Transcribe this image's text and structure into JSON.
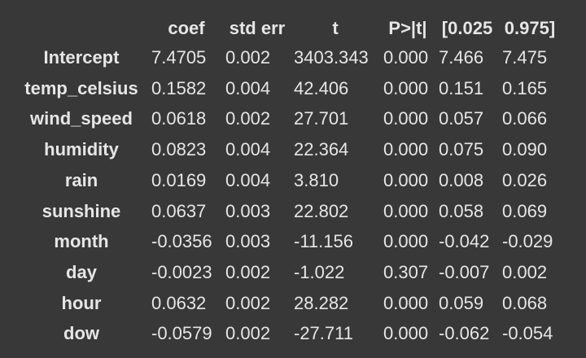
{
  "table": {
    "columns": [
      "coef",
      "std err",
      "t",
      "P>|t|",
      "[0.025",
      "0.975]"
    ],
    "rows": [
      {
        "label": "Intercept",
        "values": [
          "7.4705",
          "0.002",
          "3403.343",
          "0.000",
          "7.466",
          "7.475"
        ]
      },
      {
        "label": "temp_celsius",
        "values": [
          "0.1582",
          "0.004",
          "42.406",
          "0.000",
          "0.151",
          "0.165"
        ]
      },
      {
        "label": "wind_speed",
        "values": [
          "0.0618",
          "0.002",
          "27.701",
          "0.000",
          "0.057",
          "0.066"
        ]
      },
      {
        "label": "humidity",
        "values": [
          "0.0823",
          "0.004",
          "22.364",
          "0.000",
          "0.075",
          "0.090"
        ]
      },
      {
        "label": "rain",
        "values": [
          "0.0169",
          "0.004",
          "3.810",
          "0.000",
          "0.008",
          "0.026"
        ]
      },
      {
        "label": "sunshine",
        "values": [
          "0.0637",
          "0.003",
          "22.802",
          "0.000",
          "0.058",
          "0.069"
        ]
      },
      {
        "label": "month",
        "values": [
          "-0.0356",
          "0.003",
          "-11.156",
          "0.000",
          "-0.042",
          "-0.029"
        ]
      },
      {
        "label": "day",
        "values": [
          "-0.0023",
          "0.002",
          "-1.022",
          "0.307",
          "-0.007",
          "0.002"
        ]
      },
      {
        "label": "hour",
        "values": [
          "0.0632",
          "0.002",
          "28.282",
          "0.000",
          "0.059",
          "0.068"
        ]
      },
      {
        "label": "dow",
        "values": [
          "-0.0579",
          "0.002",
          "-27.711",
          "0.000",
          "-0.062",
          "-0.054"
        ]
      }
    ]
  },
  "colors": {
    "background": "#383838",
    "text": "#e6e6e6"
  }
}
